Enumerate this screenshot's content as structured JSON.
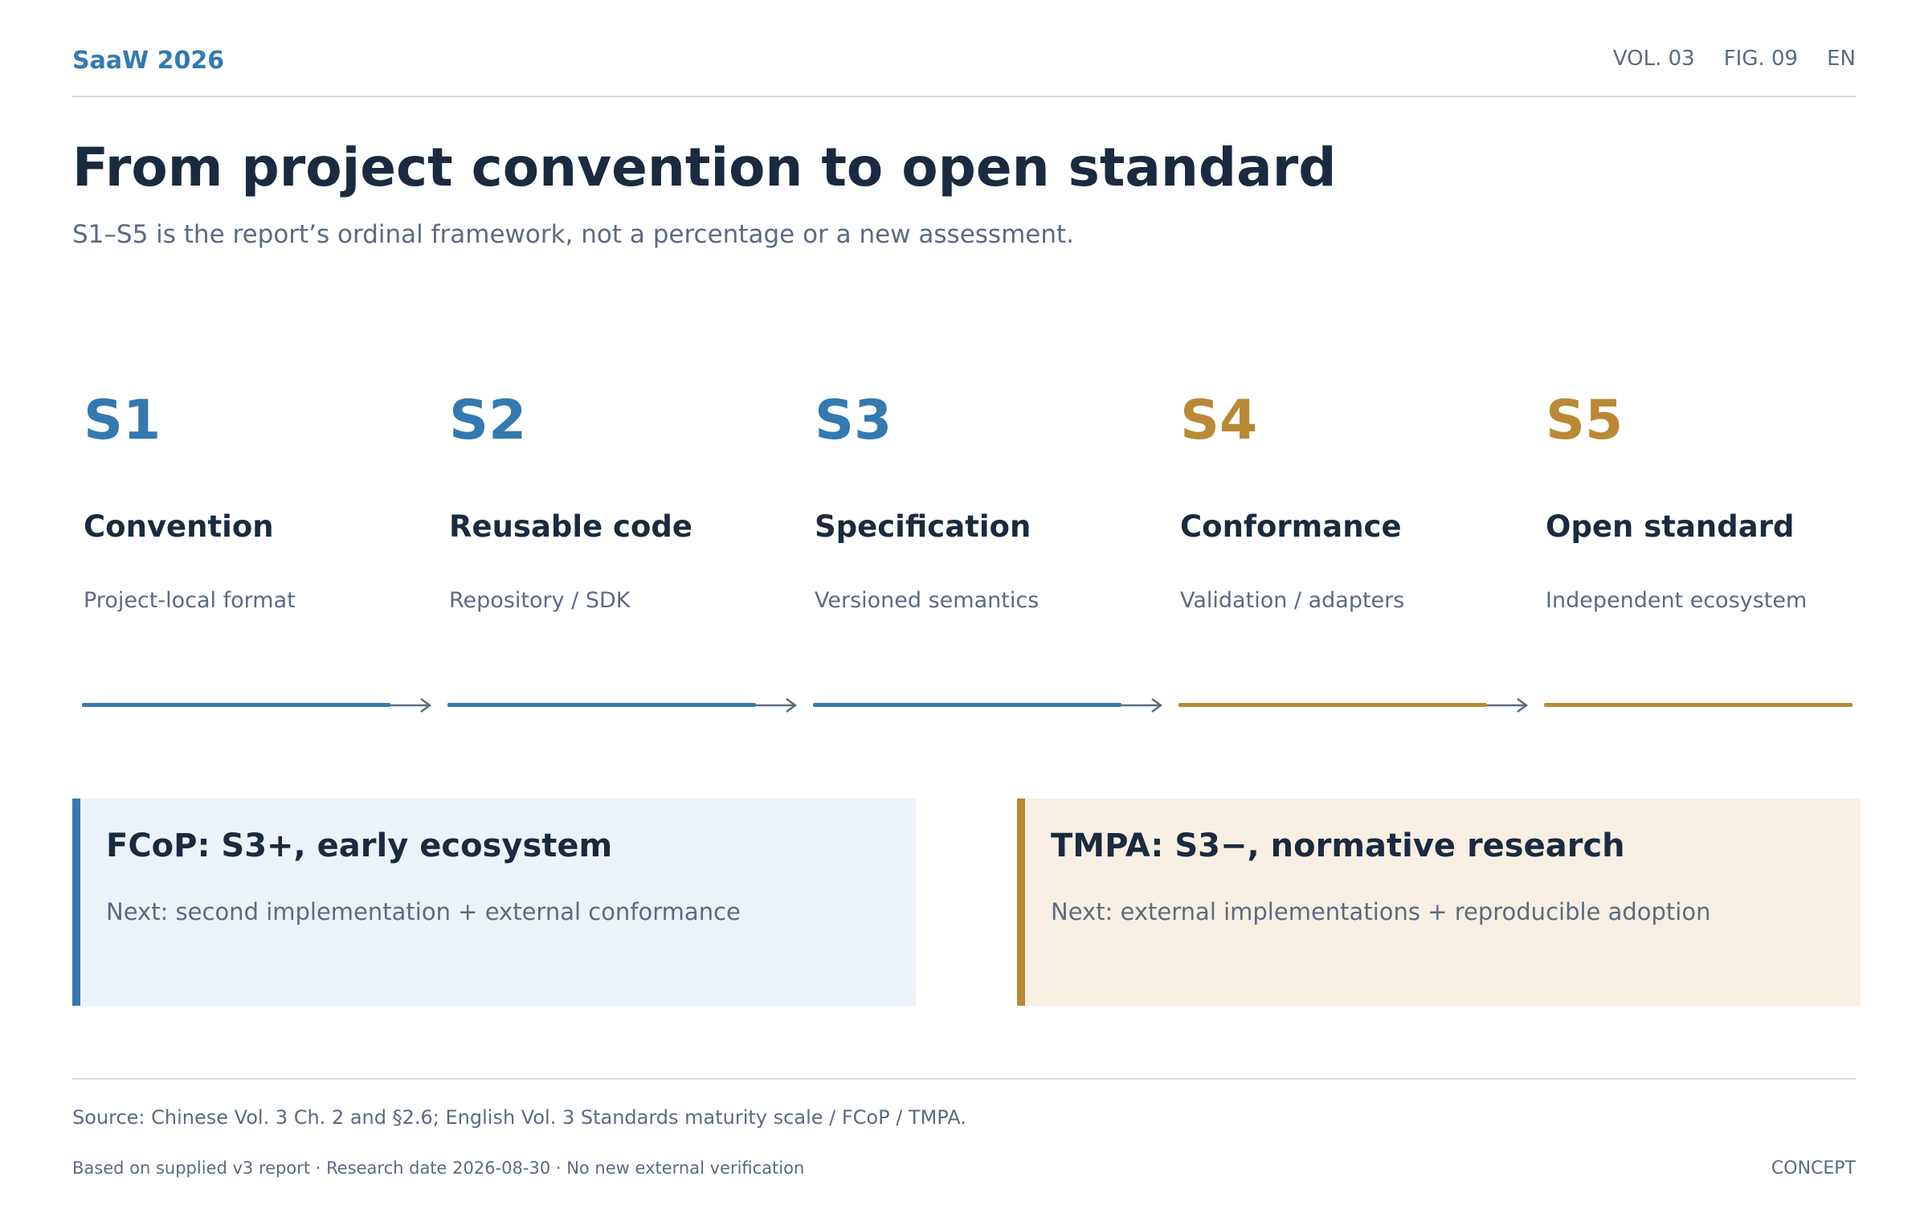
{
  "header": {
    "brand": "SaaW 2026",
    "meta": [
      "VOL. 03",
      "FIG. 09",
      "EN"
    ]
  },
  "title": "From project convention to open standard",
  "subtitle": "S1–S5 is the report’s ordinal framework, not a percentage or a new assessment.",
  "colors": {
    "blue": "#3479b0",
    "gold": "#b98936",
    "ink": "#1b2a3e",
    "muted": "#5b6b80",
    "arrow": "#5b6b80"
  },
  "stages": [
    {
      "code": "S1",
      "name": "Convention",
      "desc": "Project-local format",
      "tone": "blue"
    },
    {
      "code": "S2",
      "name": "Reusable code",
      "desc": "Repository / SDK",
      "tone": "blue"
    },
    {
      "code": "S3",
      "name": "Specification",
      "desc": "Versioned semantics",
      "tone": "blue"
    },
    {
      "code": "S4",
      "name": "Conformance",
      "desc": "Validation / adapters",
      "tone": "gold"
    },
    {
      "code": "S5",
      "name": "Open standard",
      "desc": "Independent ecosystem",
      "tone": "gold"
    }
  ],
  "cards": {
    "fcop": {
      "title": "FCoP: S3+, early ecosystem",
      "note": "Next: second implementation + external conformance"
    },
    "tmpa": {
      "title": "TMPA: S3−, normative research",
      "note": "Next: external implementations + reproducible adoption"
    }
  },
  "footer": {
    "source": "Source: Chinese Vol. 3 Ch. 2 and §2.6; English Vol. 3 Standards maturity scale / FCoP / TMPA.",
    "note": "Based on supplied v3 report · Research date 2026-08-30 · No new external verification",
    "tag": "CONCEPT"
  }
}
